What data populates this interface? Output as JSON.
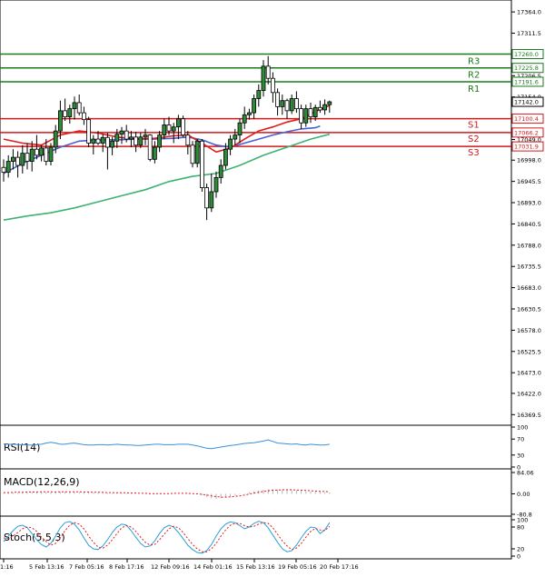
{
  "chart_data": {
    "type": "candlestick",
    "main": {
      "ylim": [
        16350,
        17380
      ],
      "y_ticks": [
        17364.0,
        17311.5,
        17206.5,
        17154.0,
        17049.0,
        16998.0,
        16945.5,
        16893.0,
        16840.5,
        16788.0,
        16735.5,
        16683.0,
        16630.5,
        16578.0,
        16525.5,
        16473.0,
        16422.0,
        16369.5
      ],
      "x_labels": [
        "1:16",
        "5 Feb 13:16",
        "7 Feb 05:16",
        "8 Feb 17:16",
        "12 Feb 09:16",
        "14 Feb 01:16",
        "15 Feb 13:16",
        "19 Feb 05:16",
        "20 Feb 17:16"
      ],
      "current_price": 17142.0,
      "levels": [
        {
          "name": "R3",
          "value": 17260.0,
          "label": "17260.0",
          "kind": "resistance"
        },
        {
          "name": "R2",
          "value": 17225.8,
          "label": "17225.8",
          "kind": "resistance"
        },
        {
          "name": "R1",
          "value": 17191.6,
          "label": "17191.6",
          "kind": "resistance"
        },
        {
          "name": "S1",
          "value": 17100.4,
          "label": "17100.4",
          "kind": "support"
        },
        {
          "name": "S2",
          "value": 17066.2,
          "label": "17066.2",
          "kind": "support"
        },
        {
          "name": "S3",
          "value": 17031.9,
          "label": "17031.9",
          "kind": "support"
        }
      ],
      "candles": [
        {
          "o": 16980,
          "h": 17000,
          "l": 16945,
          "c": 16968
        },
        {
          "o": 16968,
          "h": 17010,
          "l": 16955,
          "c": 16995
        },
        {
          "o": 16995,
          "h": 17025,
          "l": 16975,
          "c": 17005
        },
        {
          "o": 17005,
          "h": 17020,
          "l": 16955,
          "c": 16985
        },
        {
          "o": 16985,
          "h": 17035,
          "l": 16965,
          "c": 17015
        },
        {
          "o": 17015,
          "h": 17040,
          "l": 16975,
          "c": 16995
        },
        {
          "o": 16995,
          "h": 17045,
          "l": 16970,
          "c": 17025
        },
        {
          "o": 17025,
          "h": 17060,
          "l": 17000,
          "c": 17010
        },
        {
          "o": 17010,
          "h": 17035,
          "l": 16995,
          "c": 17028
        },
        {
          "o": 17028,
          "h": 17050,
          "l": 16985,
          "c": 16995
        },
        {
          "o": 16995,
          "h": 17040,
          "l": 16985,
          "c": 17030
        },
        {
          "o": 17030,
          "h": 17085,
          "l": 17015,
          "c": 17070
        },
        {
          "o": 17070,
          "h": 17145,
          "l": 17050,
          "c": 17120
        },
        {
          "o": 17120,
          "h": 17150,
          "l": 17095,
          "c": 17105
        },
        {
          "o": 17105,
          "h": 17135,
          "l": 17088,
          "c": 17125
        },
        {
          "o": 17125,
          "h": 17155,
          "l": 17098,
          "c": 17140
        },
        {
          "o": 17140,
          "h": 17160,
          "l": 17108,
          "c": 17115
        },
        {
          "o": 17115,
          "h": 17130,
          "l": 17085,
          "c": 17098
        },
        {
          "o": 17098,
          "h": 17105,
          "l": 17030,
          "c": 17040
        },
        {
          "o": 17040,
          "h": 17060,
          "l": 17012,
          "c": 17050
        },
        {
          "o": 17050,
          "h": 17070,
          "l": 17035,
          "c": 17040
        },
        {
          "o": 17040,
          "h": 17062,
          "l": 17018,
          "c": 17054
        },
        {
          "o": 17054,
          "h": 17065,
          "l": 16975,
          "c": 17030
        },
        {
          "o": 17030,
          "h": 17055,
          "l": 17010,
          "c": 17045
        },
        {
          "o": 17045,
          "h": 17075,
          "l": 17028,
          "c": 17062
        },
        {
          "o": 17062,
          "h": 17080,
          "l": 17038,
          "c": 17070
        },
        {
          "o": 17070,
          "h": 17085,
          "l": 17042,
          "c": 17050
        },
        {
          "o": 17050,
          "h": 17070,
          "l": 17030,
          "c": 17055
        },
        {
          "o": 17055,
          "h": 17068,
          "l": 17018,
          "c": 17035
        },
        {
          "o": 17035,
          "h": 17065,
          "l": 17028,
          "c": 17055
        },
        {
          "o": 17055,
          "h": 17075,
          "l": 17035,
          "c": 17060
        },
        {
          "o": 17060,
          "h": 17062,
          "l": 16995,
          "c": 17000
        },
        {
          "o": 17000,
          "h": 17045,
          "l": 16990,
          "c": 17030
        },
        {
          "o": 17030,
          "h": 17070,
          "l": 17018,
          "c": 17060
        },
        {
          "o": 17060,
          "h": 17100,
          "l": 17050,
          "c": 17085
        },
        {
          "o": 17085,
          "h": 17105,
          "l": 17060,
          "c": 17070
        },
        {
          "o": 17070,
          "h": 17090,
          "l": 17040,
          "c": 17080
        },
        {
          "o": 17080,
          "h": 17110,
          "l": 17050,
          "c": 17100
        },
        {
          "o": 17100,
          "h": 17108,
          "l": 17055,
          "c": 17060
        },
        {
          "o": 17060,
          "h": 17070,
          "l": 17012,
          "c": 17035
        },
        {
          "o": 17035,
          "h": 17045,
          "l": 16980,
          "c": 16990
        },
        {
          "o": 16990,
          "h": 17050,
          "l": 16980,
          "c": 17045
        },
        {
          "o": 17045,
          "h": 17050,
          "l": 16920,
          "c": 16930
        },
        {
          "o": 16930,
          "h": 16940,
          "l": 16850,
          "c": 16880
        },
        {
          "o": 16880,
          "h": 16965,
          "l": 16870,
          "c": 16920
        },
        {
          "o": 16920,
          "h": 16970,
          "l": 16905,
          "c": 16955
        },
        {
          "o": 16955,
          "h": 17000,
          "l": 16940,
          "c": 16985
        },
        {
          "o": 16985,
          "h": 17040,
          "l": 16975,
          "c": 17025
        },
        {
          "o": 17025,
          "h": 17060,
          "l": 17010,
          "c": 17050
        },
        {
          "o": 17050,
          "h": 17075,
          "l": 17035,
          "c": 17060
        },
        {
          "o": 17060,
          "h": 17100,
          "l": 17040,
          "c": 17090
        },
        {
          "o": 17090,
          "h": 17130,
          "l": 17075,
          "c": 17110
        },
        {
          "o": 17110,
          "h": 17125,
          "l": 17098,
          "c": 17115
        },
        {
          "o": 17115,
          "h": 17160,
          "l": 17100,
          "c": 17150
        },
        {
          "o": 17150,
          "h": 17185,
          "l": 17130,
          "c": 17170
        },
        {
          "o": 17170,
          "h": 17245,
          "l": 17155,
          "c": 17230
        },
        {
          "o": 17230,
          "h": 17255,
          "l": 17185,
          "c": 17200
        },
        {
          "o": 17200,
          "h": 17215,
          "l": 17140,
          "c": 17165
        },
        {
          "o": 17165,
          "h": 17175,
          "l": 17108,
          "c": 17130
        },
        {
          "o": 17130,
          "h": 17160,
          "l": 17110,
          "c": 17145
        },
        {
          "o": 17145,
          "h": 17150,
          "l": 17100,
          "c": 17120
        },
        {
          "o": 17120,
          "h": 17160,
          "l": 17112,
          "c": 17150
        },
        {
          "o": 17150,
          "h": 17168,
          "l": 17115,
          "c": 17125
        },
        {
          "o": 17125,
          "h": 17135,
          "l": 17075,
          "c": 17090
        },
        {
          "o": 17090,
          "h": 17135,
          "l": 17080,
          "c": 17125
        },
        {
          "o": 17125,
          "h": 17140,
          "l": 17090,
          "c": 17105
        },
        {
          "o": 17105,
          "h": 17135,
          "l": 17095,
          "c": 17128
        },
        {
          "o": 17128,
          "h": 17145,
          "l": 17115,
          "c": 17122
        },
        {
          "o": 17122,
          "h": 17148,
          "l": 17110,
          "c": 17135
        },
        {
          "o": 17135,
          "h": 17145,
          "l": 17115,
          "c": 17142
        }
      ],
      "ma_red": [
        [
          0,
          17050
        ],
        [
          4,
          17040
        ],
        [
          8,
          17035
        ],
        [
          12,
          17060
        ],
        [
          16,
          17070
        ],
        [
          20,
          17065
        ],
        [
          24,
          17055
        ],
        [
          28,
          17050
        ],
        [
          32,
          17052
        ],
        [
          36,
          17058
        ],
        [
          39,
          17060
        ],
        [
          42,
          17040
        ],
        [
          45,
          17018
        ],
        [
          48,
          17028
        ],
        [
          51,
          17050
        ],
        [
          54,
          17070
        ],
        [
          57,
          17080
        ],
        [
          60,
          17092
        ],
        [
          63,
          17100
        ],
        [
          66,
          17118
        ],
        [
          69,
          17133
        ]
      ],
      "ma_blue": [
        [
          0,
          16965
        ],
        [
          4,
          16990
        ],
        [
          8,
          17010
        ],
        [
          12,
          17030
        ],
        [
          16,
          17045
        ],
        [
          20,
          17048
        ],
        [
          24,
          17048
        ],
        [
          28,
          17050
        ],
        [
          32,
          17050
        ],
        [
          36,
          17052
        ],
        [
          39,
          17055
        ],
        [
          42,
          17048
        ],
        [
          45,
          17035
        ],
        [
          48,
          17030
        ],
        [
          51,
          17040
        ],
        [
          54,
          17050
        ],
        [
          57,
          17060
        ],
        [
          60,
          17068
        ],
        [
          63,
          17075
        ],
        [
          66,
          17078
        ],
        [
          67,
          17082
        ]
      ],
      "ma_green": [
        [
          0,
          16850
        ],
        [
          5,
          16860
        ],
        [
          10,
          16868
        ],
        [
          15,
          16880
        ],
        [
          20,
          16895
        ],
        [
          25,
          16910
        ],
        [
          30,
          16925
        ],
        [
          35,
          16945
        ],
        [
          40,
          16958
        ],
        [
          45,
          16965
        ],
        [
          50,
          16985
        ],
        [
          55,
          17010
        ],
        [
          60,
          17030
        ],
        [
          65,
          17050
        ],
        [
          69,
          17062
        ]
      ]
    },
    "rsi": {
      "label": "RSI(14)",
      "ylim": [
        0,
        100
      ],
      "ticks": [
        100,
        70,
        30,
        0
      ],
      "values": [
        58,
        57,
        57,
        56,
        56,
        55,
        55,
        56,
        57,
        60,
        62,
        60,
        57,
        57,
        59,
        60,
        58,
        56,
        55,
        55,
        56,
        56,
        55,
        56,
        57,
        56,
        55,
        55,
        54,
        54,
        55,
        56,
        57,
        57,
        56,
        56,
        56,
        57,
        57,
        57,
        55,
        53,
        50,
        47,
        46,
        48,
        50,
        52,
        54,
        55,
        57,
        59,
        60,
        61,
        63,
        65,
        68,
        64,
        60,
        59,
        58,
        57,
        58,
        56,
        55,
        57,
        56,
        55,
        55,
        57
      ]
    },
    "macd": {
      "label": "MACD(12,26,9)",
      "ylim": [
        -80.8,
        84.06
      ],
      "ticks": [
        "84.06",
        "0.00",
        "-80.8"
      ],
      "hist": [
        3,
        4,
        5,
        5,
        6,
        6,
        7,
        8,
        8,
        7,
        7,
        6,
        8,
        9,
        9,
        8,
        7,
        6,
        5,
        5,
        5,
        4,
        4,
        3,
        3,
        3,
        2,
        2,
        1,
        0,
        -1,
        -2,
        -2,
        -1,
        0,
        1,
        1,
        2,
        2,
        2,
        1,
        -2,
        -5,
        -12,
        -18,
        -20,
        -18,
        -15,
        -10,
        -6,
        -2,
        2,
        6,
        10,
        14,
        16,
        18,
        18,
        17,
        17,
        15,
        14,
        13,
        12,
        10,
        9,
        8,
        7,
        6,
        6
      ],
      "signal": [
        5,
        5,
        6,
        6,
        6,
        7,
        7,
        7,
        8,
        8,
        8,
        7,
        8,
        8,
        8,
        8,
        8,
        7,
        7,
        6,
        6,
        6,
        5,
        5,
        4,
        4,
        4,
        3,
        3,
        2,
        2,
        1,
        1,
        1,
        1,
        1,
        2,
        2,
        2,
        2,
        1,
        0,
        -2,
        -5,
        -8,
        -11,
        -13,
        -13,
        -12,
        -10,
        -8,
        -5,
        -1,
        3,
        6,
        9,
        12,
        14,
        15,
        16,
        16,
        16,
        15,
        14,
        13,
        12,
        11,
        10,
        9,
        8
      ]
    },
    "stoch": {
      "label": "Stoch(5,5,3)",
      "ylim": [
        0,
        100
      ],
      "ticks": [
        100,
        80,
        20,
        0
      ],
      "k": [
        40,
        55,
        70,
        82,
        85,
        78,
        62,
        45,
        32,
        25,
        35,
        55,
        78,
        92,
        95,
        88,
        72,
        50,
        30,
        20,
        18,
        28,
        45,
        65,
        80,
        88,
        85,
        70,
        52,
        35,
        25,
        28,
        42,
        62,
        78,
        85,
        80,
        65,
        48,
        30,
        18,
        10,
        8,
        15,
        32,
        55,
        75,
        88,
        94,
        92,
        84,
        75,
        80,
        90,
        96,
        92,
        78,
        58,
        38,
        20,
        12,
        15,
        30,
        50,
        68,
        80,
        78,
        62,
        72,
        92
      ],
      "d": [
        50,
        48,
        55,
        65,
        75,
        80,
        78,
        68,
        52,
        40,
        30,
        35,
        50,
        70,
        85,
        92,
        88,
        75,
        55,
        38,
        25,
        22,
        30,
        45,
        62,
        78,
        84,
        80,
        68,
        52,
        38,
        30,
        32,
        45,
        60,
        75,
        82,
        78,
        65,
        48,
        32,
        20,
        12,
        12,
        20,
        35,
        55,
        72,
        85,
        90,
        90,
        84,
        80,
        82,
        88,
        92,
        90,
        78,
        60,
        42,
        28,
        18,
        22,
        35,
        52,
        68,
        76,
        72,
        70,
        82
      ]
    }
  }
}
